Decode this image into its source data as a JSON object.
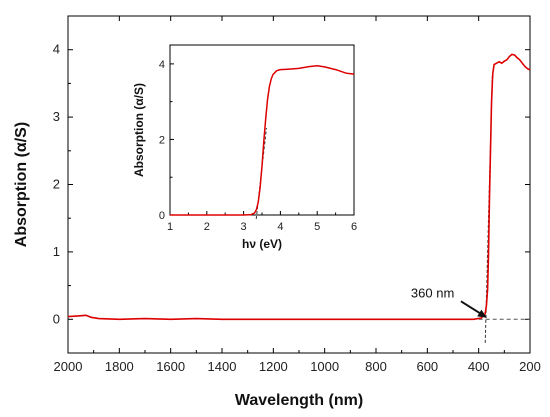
{
  "chart_data": [
    {
      "type": "line",
      "xlabel": "Wavelength (nm)",
      "ylabel": "Absorption (α/S)",
      "xlim": [
        2000,
        200
      ],
      "ylim": [
        -0.5,
        4.5
      ],
      "x_ticks": [
        2000,
        1800,
        1600,
        1400,
        1200,
        1000,
        800,
        600,
        400,
        200
      ],
      "y_ticks": [
        0,
        1,
        2,
        3,
        4
      ],
      "series": [
        {
          "x": [
            2000,
            1960,
            1930,
            1910,
            1880,
            1800,
            1700,
            1600,
            1500,
            1400,
            1300,
            1200,
            1100,
            1000,
            900,
            800,
            700,
            600,
            500,
            420,
            390,
            375,
            370,
            365,
            362,
            360,
            358,
            355,
            352,
            350,
            347,
            345,
            340,
            330,
            320,
            310,
            300,
            290,
            280,
            270,
            260,
            250,
            240,
            230,
            220,
            210,
            200
          ],
          "y": [
            0.04,
            0.05,
            0.06,
            0.03,
            0.01,
            0.0,
            0.01,
            0.0,
            0.01,
            0.0,
            0.0,
            0.0,
            0.0,
            0.0,
            0.0,
            0.0,
            0.0,
            0.0,
            0.0,
            0.0,
            0.02,
            0.08,
            0.2,
            0.45,
            0.9,
            1.3,
            1.75,
            2.3,
            2.85,
            3.2,
            3.5,
            3.65,
            3.78,
            3.8,
            3.82,
            3.8,
            3.83,
            3.85,
            3.9,
            3.93,
            3.92,
            3.88,
            3.85,
            3.8,
            3.75,
            3.72,
            3.7
          ]
        }
      ],
      "tangent": {
        "x": [
          372,
          347
        ],
        "y": [
          0.0,
          3.6
        ]
      },
      "baseline_extension": {
        "x": [
          1000,
          200
        ],
        "y": [
          0.0,
          0.0
        ]
      },
      "annotation": {
        "text": "360 nm",
        "x": 360,
        "y": 0.0
      },
      "colors": {
        "series": "#dd0000",
        "tangent": "#333333",
        "dashed": "#555555"
      }
    },
    {
      "type": "line",
      "xlabel": "hν (eV)",
      "ylabel": "Absorption (α/S)",
      "xlim": [
        1,
        6
      ],
      "ylim": [
        0,
        4.5
      ],
      "x_ticks": [
        1,
        2,
        3,
        4,
        5,
        6
      ],
      "y_ticks": [
        0,
        2,
        4
      ],
      "series": [
        {
          "x": [
            1.0,
            1.5,
            2.0,
            2.5,
            3.0,
            3.2,
            3.3,
            3.35,
            3.4,
            3.45,
            3.5,
            3.55,
            3.6,
            3.65,
            3.7,
            3.75,
            3.8,
            3.9,
            4.0,
            4.2,
            4.5,
            4.8,
            5.0,
            5.2,
            5.5,
            5.8,
            6.0
          ],
          "y": [
            0.0,
            0.0,
            0.0,
            0.0,
            0.0,
            0.01,
            0.05,
            0.15,
            0.35,
            0.75,
            1.3,
            1.95,
            2.55,
            3.05,
            3.4,
            3.6,
            3.72,
            3.82,
            3.85,
            3.86,
            3.88,
            3.93,
            3.95,
            3.92,
            3.85,
            3.75,
            3.73
          ]
        }
      ],
      "tangent": {
        "x": [
          3.36,
          3.62
        ],
        "y": [
          0.0,
          2.3
        ]
      }
    }
  ]
}
